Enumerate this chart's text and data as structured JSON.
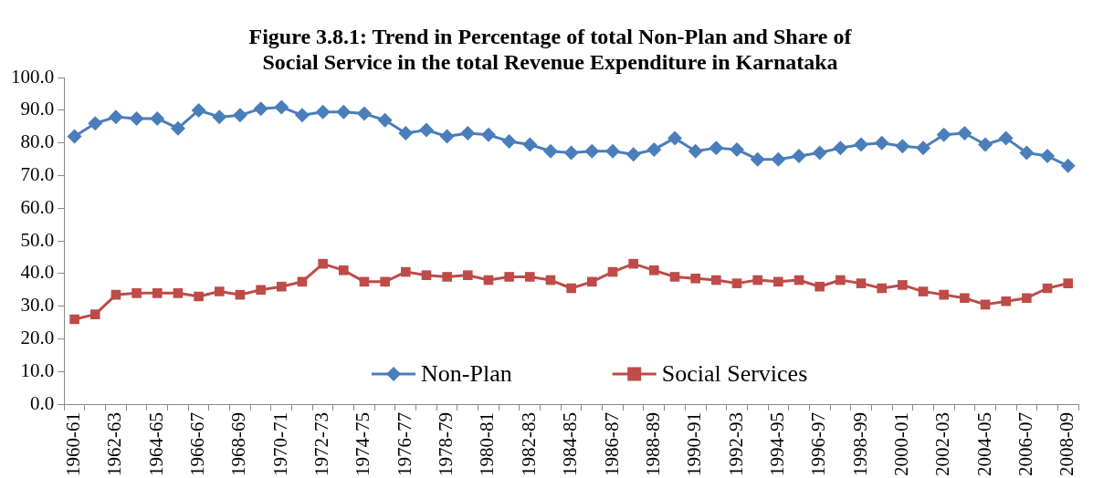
{
  "chart_data": {
    "type": "line",
    "title": [
      "Figure 3.8.1: Trend in Percentage of total Non-Plan and Share of",
      "Social Service in the total Revenue Expenditure in Karnataka"
    ],
    "categories": [
      "1960-61",
      null,
      "1962-63",
      null,
      "1964-65",
      null,
      "1966-67",
      null,
      "1968-69",
      null,
      "1970-71",
      null,
      "1972-73",
      null,
      "1974-75",
      null,
      "1976-77",
      null,
      "1978-79",
      null,
      "1980-81",
      null,
      "1982-83",
      null,
      "1984-85",
      null,
      "1986-87",
      null,
      "1988-89",
      null,
      "1990-91",
      null,
      "1992-93",
      null,
      "1994-95",
      null,
      "1996-97",
      null,
      "1998-99",
      null,
      "2000-01",
      null,
      "2002-03",
      null,
      "2004-05",
      null,
      "2006-07",
      null,
      "2008-09"
    ],
    "series": [
      {
        "name": "Non-Plan",
        "color": "#4a7ebb",
        "marker": "diamond",
        "values": [
          82,
          86,
          88,
          87.5,
          87.5,
          84.5,
          90,
          88,
          88.5,
          90.5,
          91,
          88.5,
          89.5,
          89.5,
          89,
          87,
          83,
          84,
          82,
          83,
          82.5,
          80.5,
          79.5,
          77.5,
          77,
          77.5,
          77.5,
          76.5,
          78,
          81.5,
          77.5,
          78.5,
          78,
          75,
          75,
          76,
          77,
          78.5,
          79.5,
          80,
          79,
          78.5,
          82.5,
          83,
          79.5,
          81.5,
          77,
          76,
          73
        ]
      },
      {
        "name": "Social Services",
        "color": "#be4b48",
        "marker": "square",
        "values": [
          26,
          27.5,
          33.5,
          34,
          34,
          34,
          33,
          34.5,
          33.5,
          35,
          36,
          37.5,
          43,
          41,
          37.5,
          37.5,
          40.5,
          39.5,
          39,
          39.5,
          38,
          39,
          39,
          38,
          35.5,
          37.5,
          40.5,
          43,
          41,
          39,
          38.5,
          38,
          37,
          38,
          37.5,
          38,
          36,
          38,
          37,
          35.5,
          36.5,
          34.5,
          33.5,
          32.5,
          30.5,
          31.5,
          32.5,
          35.5,
          37
        ]
      }
    ],
    "ylim": [
      0,
      100
    ],
    "yticks": [
      {
        "value": 0,
        "label": "0.0"
      },
      {
        "value": 10,
        "label": "10.0"
      },
      {
        "value": 20,
        "label": "20.0"
      },
      {
        "value": 30,
        "label": "30.0"
      },
      {
        "value": 40,
        "label": "40.0"
      },
      {
        "value": 50,
        "label": "50.0"
      },
      {
        "value": 60,
        "label": "60.0"
      },
      {
        "value": 70,
        "label": "70.0"
      },
      {
        "value": 80,
        "label": "80.0"
      },
      {
        "value": 90,
        "label": "90.0"
      },
      {
        "value": 100,
        "label": "100.0"
      }
    ],
    "grid": false,
    "legend": "bottom",
    "line_style": "solid"
  }
}
